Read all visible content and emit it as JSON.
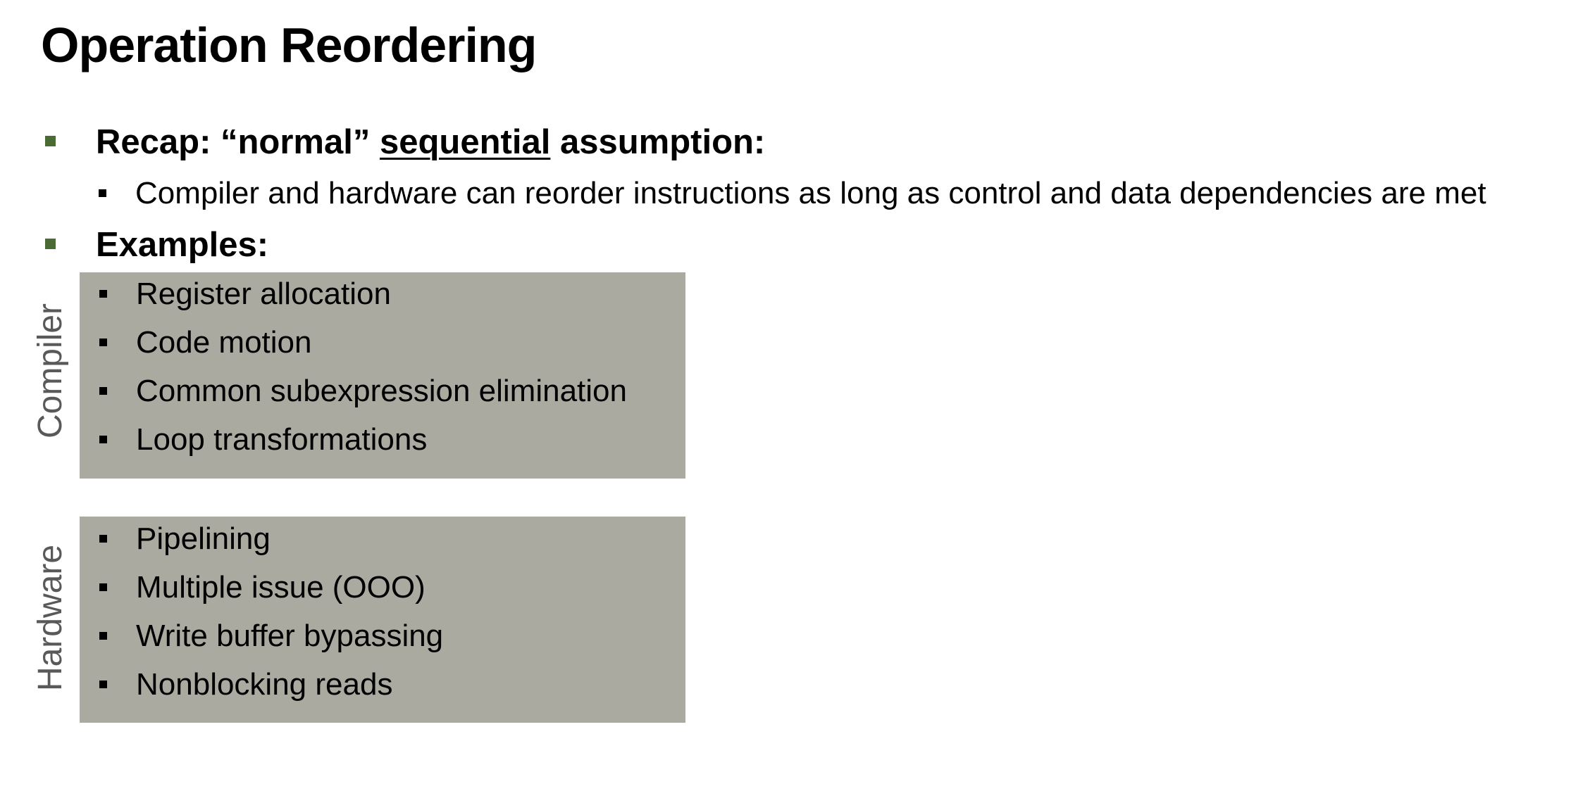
{
  "slide": {
    "title": "Operation Reordering",
    "recap": {
      "prefix": "Recap: “normal” ",
      "emphasis": "sequential",
      "suffix": " assumption:",
      "detail": "Compiler and hardware can reorder instructions as long as control and data dependencies are met"
    },
    "examples_heading": "Examples:",
    "compiler": {
      "label": "Compiler",
      "items": [
        "Register allocation",
        "Code motion",
        "Common subexpression elimination",
        "Loop transformations"
      ]
    },
    "hardware": {
      "label": "Hardware",
      "items": [
        "Pipelining",
        "Multiple issue (OOO)",
        "Write buffer bypassing",
        "Nonblocking reads"
      ]
    }
  },
  "colors": {
    "l1_bullet": "#4a6b34",
    "panel_fill": "#aaaaa1",
    "side_label": "#595959"
  }
}
